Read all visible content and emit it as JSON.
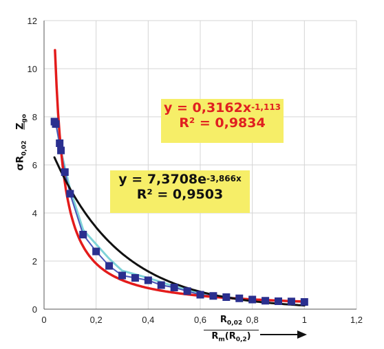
{
  "chart_data": {
    "type": "scatter",
    "xlim": [
      0,
      1.2
    ],
    "ylim": [
      0,
      12
    ],
    "x_ticks": [
      "0",
      "0,2",
      "0,4",
      "0,6",
      "0,8",
      "1",
      "1,2"
    ],
    "y_ticks": [
      "0",
      "2",
      "4",
      "6",
      "8",
      "10",
      "12"
    ],
    "grid": true,
    "xlabel": {
      "numerator": "R",
      "numerator_sub": "0,02",
      "denominator": "R",
      "denominator_sub_m": "m",
      "denominator_paren": "(R",
      "denominator_sub": "0,2",
      "close": ")"
    },
    "ylabel": {
      "top": "Z",
      "top_sub": "go",
      "bottom": "σR",
      "bottom_sub": "0,02"
    },
    "series": [
      {
        "color": "#2a2f8f",
        "marker": "square",
        "x": [
          0.04,
          0.045,
          0.06,
          0.065,
          0.08,
          0.1,
          0.15,
          0.2,
          0.25,
          0.3,
          0.35,
          0.4,
          0.45,
          0.5,
          0.55,
          0.6,
          0.65,
          0.7,
          0.75,
          0.8,
          0.85,
          0.9,
          0.95,
          1.0
        ],
        "y": [
          7.8,
          7.7,
          6.9,
          6.6,
          5.7,
          4.8,
          3.1,
          2.4,
          1.8,
          1.4,
          1.3,
          1.2,
          1.0,
          0.9,
          0.75,
          0.6,
          0.55,
          0.5,
          0.45,
          0.4,
          0.35,
          0.33,
          0.32,
          0.3
        ]
      },
      {
        "color": "#7fd3d8",
        "marker": "none",
        "x": [
          0.045,
          0.06,
          0.08,
          0.1,
          0.15,
          0.2,
          0.25,
          0.3,
          0.4,
          0.5,
          0.6,
          0.7,
          0.8,
          0.9,
          1.0
        ],
        "y": [
          7.9,
          6.8,
          5.9,
          5.0,
          3.3,
          2.7,
          2.1,
          1.6,
          1.3,
          0.95,
          0.65,
          0.5,
          0.4,
          0.35,
          0.3
        ]
      }
    ],
    "fits": [
      {
        "color": "#e31b1b",
        "kind": "power",
        "a": 0.3162,
        "b": -1.113,
        "x_range": [
          0.042,
          1.0
        ],
        "equation": "y = 0,3162x",
        "exponent": "-1,113",
        "r2": "R² = 0,9834"
      },
      {
        "color": "#111111",
        "kind": "exponential",
        "a": 7.3708,
        "b": -3.866,
        "x_range": [
          0.04,
          1.0
        ],
        "equation": "y = 7,3708e",
        "exponent": "-3,866x",
        "r2": "R² = 0,9503"
      }
    ]
  }
}
